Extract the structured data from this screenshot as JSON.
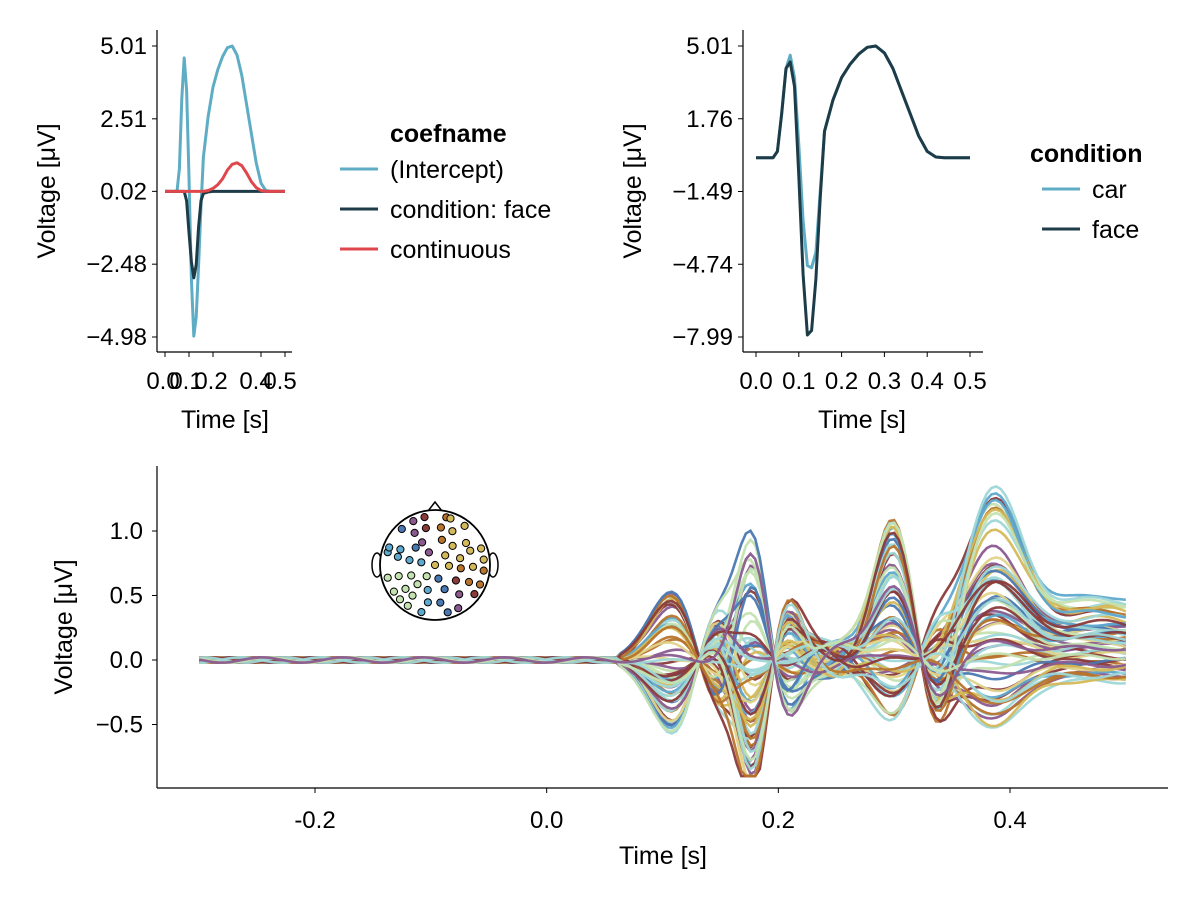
{
  "chart_data": [
    {
      "type": "line",
      "xlabel": "Time [s]",
      "ylabel": "Voltage [μV]",
      "xlim": [
        0.0,
        0.5
      ],
      "ylim": [
        -4.98,
        5.01
      ],
      "x_ticks": [
        "0.0",
        "0.1",
        "0.2",
        "0.4",
        "0.5"
      ],
      "y_ticks": [
        "5.01",
        "2.51",
        "0.02",
        "−2.48",
        "−4.98"
      ],
      "legend": {
        "title": "coefname",
        "placement": "right",
        "entries": [
          "(Intercept)",
          "condition: face",
          "continuous"
        ]
      },
      "x": [
        0.0,
        0.02,
        0.04,
        0.05,
        0.06,
        0.07,
        0.08,
        0.09,
        0.1,
        0.11,
        0.12,
        0.13,
        0.14,
        0.15,
        0.16,
        0.18,
        0.2,
        0.22,
        0.24,
        0.26,
        0.28,
        0.3,
        0.32,
        0.34,
        0.36,
        0.38,
        0.4,
        0.42,
        0.44,
        0.46,
        0.48,
        0.5
      ],
      "series": [
        {
          "name": "(Intercept)",
          "color": "#5fadc4",
          "values": [
            0.02,
            0.02,
            0.02,
            0.02,
            0.8,
            3.2,
            4.6,
            3.5,
            0.5,
            -3.0,
            -4.95,
            -4.3,
            -2.5,
            -0.5,
            1.2,
            2.6,
            3.6,
            4.2,
            4.65,
            4.95,
            5.01,
            4.7,
            4.0,
            3.0,
            2.0,
            1.0,
            0.3,
            0.05,
            0.02,
            0.02,
            0.02,
            0.02
          ]
        },
        {
          "name": "condition: face",
          "color": "#1e3c48",
          "values": [
            0.02,
            0.02,
            0.02,
            0.02,
            0.02,
            0.02,
            0.02,
            -0.3,
            -1.4,
            -2.4,
            -2.95,
            -2.5,
            -1.2,
            -0.3,
            -0.05,
            0.0,
            0.02,
            0.02,
            0.02,
            0.02,
            0.02,
            0.02,
            0.02,
            0.02,
            0.02,
            0.02,
            0.02,
            0.02,
            0.02,
            0.02,
            0.02,
            0.02
          ]
        },
        {
          "name": "continuous",
          "color": "#e0474c",
          "values": [
            0.02,
            0.02,
            0.02,
            0.02,
            0.02,
            0.02,
            0.02,
            0.02,
            0.02,
            0.02,
            0.02,
            0.02,
            0.02,
            0.02,
            0.02,
            0.05,
            0.12,
            0.25,
            0.45,
            0.75,
            0.95,
            1.0,
            0.9,
            0.65,
            0.35,
            0.15,
            0.05,
            0.02,
            0.02,
            0.02,
            0.02,
            0.02
          ]
        }
      ]
    },
    {
      "type": "line",
      "xlabel": "Time [s]",
      "ylabel": "Voltage [μV]",
      "xlim": [
        0.0,
        0.5
      ],
      "ylim": [
        -7.99,
        5.01
      ],
      "x_ticks": [
        "0.0",
        "0.1",
        "0.2",
        "0.3",
        "0.4",
        "0.5"
      ],
      "y_ticks": [
        "5.01",
        "1.76",
        "−1.49",
        "−4.74",
        "−7.99"
      ],
      "legend": {
        "title": "condition",
        "placement": "right",
        "entries": [
          "car",
          "face"
        ]
      },
      "x": [
        0.0,
        0.02,
        0.04,
        0.05,
        0.06,
        0.07,
        0.08,
        0.09,
        0.1,
        0.11,
        0.12,
        0.13,
        0.14,
        0.15,
        0.16,
        0.18,
        0.2,
        0.22,
        0.24,
        0.26,
        0.28,
        0.3,
        0.32,
        0.34,
        0.36,
        0.38,
        0.4,
        0.42,
        0.44,
        0.46,
        0.48,
        0.5
      ],
      "series": [
        {
          "name": "car",
          "color": "#5fadc4",
          "values": [
            0.02,
            0.02,
            0.02,
            0.3,
            2.0,
            4.0,
            4.6,
            3.6,
            0.6,
            -2.8,
            -4.8,
            -4.9,
            -4.2,
            -1.5,
            1.2,
            2.6,
            3.6,
            4.2,
            4.65,
            4.95,
            5.01,
            4.7,
            4.0,
            3.0,
            2.0,
            1.0,
            0.3,
            0.05,
            0.02,
            0.02,
            0.02,
            0.02
          ]
        },
        {
          "name": "face",
          "color": "#1e3c48",
          "values": [
            0.02,
            0.02,
            0.02,
            0.3,
            2.0,
            4.0,
            4.3,
            3.2,
            -0.8,
            -5.2,
            -7.9,
            -7.7,
            -5.4,
            -1.8,
            1.2,
            2.6,
            3.6,
            4.2,
            4.65,
            4.95,
            5.01,
            4.7,
            4.0,
            3.0,
            2.0,
            1.0,
            0.3,
            0.05,
            0.02,
            0.02,
            0.02,
            0.02
          ]
        }
      ]
    },
    {
      "type": "line",
      "xlabel": "Time [s]",
      "ylabel": "Voltage [μV]",
      "xlim": [
        -0.3,
        0.5
      ],
      "ylim": [
        -0.95,
        1.45
      ],
      "x_ticks": [
        "-0.2",
        "0.0",
        "0.2",
        "0.4"
      ],
      "x_tick_values": [
        -0.2,
        0.0,
        0.2,
        0.4
      ],
      "y_ticks": [
        "1.0",
        "0.5",
        "0.0",
        "−0.5"
      ],
      "y_tick_values": [
        1.0,
        0.5,
        0.0,
        -0.5
      ],
      "legend": {
        "placement": "inset topographic head map"
      },
      "series_count": 64,
      "channel_colors": [
        "#9fd7d7",
        "#c4e2b0",
        "#5fa9cf",
        "#4a78b2",
        "#8a5a8f",
        "#8b3a3a",
        "#b8742c",
        "#d4b95a",
        "#e0d48a"
      ]
    }
  ]
}
